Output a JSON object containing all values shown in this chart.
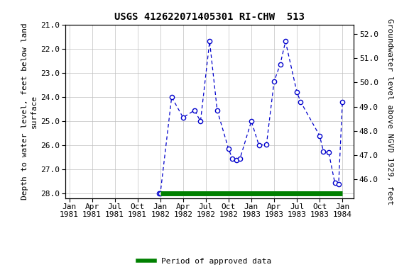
{
  "title": "USGS 412622071405301 RI-CHW  513",
  "ylabel_left": "Depth to water level, feet below land\nsurface",
  "ylabel_right": "Groundwater level above NGVD 1929, feet",
  "xlabel_dates": [
    "Jan\n1981",
    "Apr\n1981",
    "Jul\n1981",
    "Oct\n1981",
    "Jan\n1982",
    "Apr\n1982",
    "Jul\n1982",
    "Oct\n1982",
    "Jan\n1983",
    "Apr\n1983",
    "Jul\n1983",
    "Oct\n1983",
    "Jan\n1984"
  ],
  "ylim_left": [
    28.2,
    21.0
  ],
  "ylim_right": [
    45.2,
    52.4
  ],
  "yticks_left": [
    21.0,
    22.0,
    23.0,
    24.0,
    25.0,
    26.0,
    27.0,
    28.0
  ],
  "yticks_right": [
    46.0,
    47.0,
    48.0,
    49.0,
    50.0,
    51.0,
    52.0
  ],
  "line_color": "#0000cc",
  "legend_label": "Period of approved data",
  "legend_color": "#008000",
  "background_color": "#ffffff",
  "title_fontsize": 10,
  "axis_label_fontsize": 8,
  "tick_fontsize": 8,
  "points": [
    [
      11.8,
      28.0
    ],
    [
      12.0,
      28.0
    ],
    [
      13.5,
      24.0
    ],
    [
      15.0,
      24.85
    ],
    [
      16.5,
      24.55
    ],
    [
      17.3,
      25.0
    ],
    [
      18.5,
      21.7
    ],
    [
      19.5,
      24.55
    ],
    [
      21.0,
      26.15
    ],
    [
      21.5,
      26.55
    ],
    [
      22.0,
      26.6
    ],
    [
      22.5,
      26.55
    ],
    [
      24.0,
      25.0
    ],
    [
      25.0,
      26.0
    ],
    [
      26.0,
      25.95
    ],
    [
      27.0,
      23.35
    ],
    [
      27.8,
      22.65
    ],
    [
      28.5,
      21.7
    ],
    [
      30.0,
      23.8
    ],
    [
      30.5,
      24.2
    ],
    [
      33.0,
      25.6
    ],
    [
      33.5,
      26.25
    ],
    [
      34.2,
      26.3
    ],
    [
      35.0,
      27.55
    ],
    [
      35.5,
      27.6
    ],
    [
      36.0,
      24.2
    ]
  ],
  "xlim": [
    -0.5,
    37.5
  ],
  "tick_positions": [
    0,
    3,
    6,
    9,
    12,
    15,
    18,
    21,
    24,
    27,
    30,
    33,
    36
  ]
}
